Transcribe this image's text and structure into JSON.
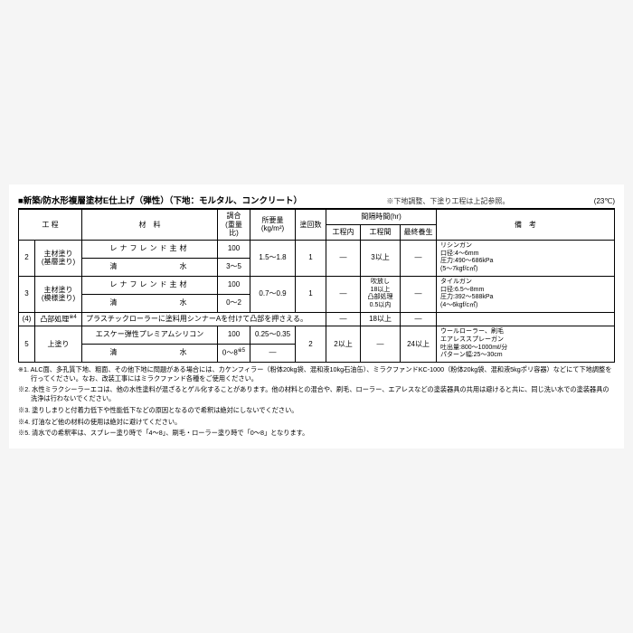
{
  "header": {
    "title": "■新築/防水形複層塗材E仕上げ（弾性）（下地：モルタル、コンクリート）",
    "subnote": "※下地調整、下塗り工程は上記参照。",
    "temp": "(23℃)"
  },
  "columns": {
    "step": "工 程",
    "material": "材　料",
    "ratio": "調合\n(重量比)",
    "qty": "所要量\n(kg/m²)",
    "count": "塗回数",
    "interval_group": "間隔時間(hr)",
    "interval_in": "工程内",
    "interval_between": "工程間",
    "interval_final": "最終養生",
    "remarks": "備　考"
  },
  "rows": {
    "r2": {
      "no": "2",
      "step": "主材塗り\n(基層塗り)",
      "mat1": "レナフレンド主材",
      "ratio1": "100",
      "mat2": "清　　　　　　水",
      "ratio2": "3～5",
      "qty": "1.5～1.8",
      "count": "1",
      "int_in": "―",
      "int_between": "3以上",
      "int_final": "―",
      "remarks": "リシンガン\n口径:4～6mm\n圧力:490～686kPa\n(5～7kgf/c㎡)"
    },
    "r3": {
      "no": "3",
      "step": "主材塗り\n(模様塗り)",
      "mat1": "レナフレンド主材",
      "ratio1": "100",
      "mat2": "清　　　　　　水",
      "ratio2": "0～2",
      "qty": "0.7～0.9",
      "count": "1",
      "int_in": "―",
      "int_between": "吹放し\n18以上\n凸部処理\n0.5以内",
      "int_final": "―",
      "remarks": "タイルガン\n口径:6.5～8mm\n圧力:392～588kPa\n(4～6kgf/c㎡)"
    },
    "r4": {
      "no": "(4)",
      "step": "凸部処理",
      "sup": "※4",
      "mat": "プラスチックローラーに塗料用シンナーAを付けて凸部を押さえる。",
      "int_in": "―",
      "int_between": "18以上",
      "int_final": "―"
    },
    "r5": {
      "no": "5",
      "step": "上塗り",
      "mat1": "エスケー弾性プレミアムシリコン",
      "ratio1": "100",
      "mat2": "清　　　　　　水",
      "ratio2": "0～8",
      "ratio2_sup": "※5",
      "qty1": "0.25～0.35",
      "qty2": "―",
      "count": "2",
      "int_in": "2以上",
      "int_between": "―",
      "int_final": "24以上",
      "remarks": "ウールローラー、刷毛\nエアレススプレーガン\n吐出量:800～1000mℓ/分\nパターン幅:25～30cm"
    }
  },
  "notes": {
    "n1": "※1. ALC面、多孔質下地、粗面、その他下地に問題がある場合には、カケンフィラー（粉体20kg袋、混和液10kg石油缶）、ミラクファンドKC-1000（粉体20kg袋、混和液5kgポリ容器）などにて下地調整を行ってください。なお、改装工事にはミラクファンド各種をご使用ください。",
    "n2": "※2. 水性ミラクシーラーエコは、他の水性塗料が混ざるとゲル化することがあります。他の材料との混合や、刷毛、ローラー、エアレスなどの塗装器具の共用は避けると共に、同じ洗い水での塗装器具の洗浄は行わないでください。",
    "n3": "※3. 塗りしまりと付着力低下や性能低下などの原因となるので希釈は絶対にしないでください。",
    "n4": "※4. 灯油など他の材料の使用は絶対に避けてください。",
    "n5": "※5. 清水での希釈率は、スプレー塗り時で「4～8」、刷毛・ローラー塗り時で「0～8」となります。"
  }
}
